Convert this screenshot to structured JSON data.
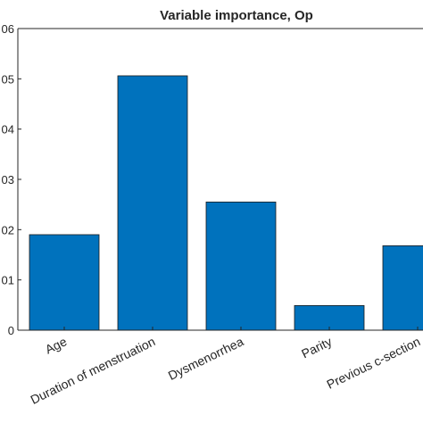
{
  "chart_data": {
    "type": "bar",
    "title": "Variable importance, Op",
    "xlabel": "",
    "ylabel": "",
    "categories": [
      "Age",
      "Duration of menstruation",
      "Dysmenorrhea",
      "Parity",
      "Previous c-section"
    ],
    "values": [
      0.019,
      0.0506,
      0.0255,
      0.0049,
      0.0168
    ],
    "ylim": [
      0,
      0.06
    ],
    "yticks": [
      0,
      0.01,
      0.02,
      0.03,
      0.04,
      0.05,
      0.06
    ],
    "ytick_labels": [
      "0",
      "01",
      "02",
      "03",
      "04",
      "05",
      "06"
    ],
    "grid": false,
    "legend": "none",
    "colors": {
      "bar": "#0072BD",
      "axis": "#262626",
      "text": "#262626"
    }
  }
}
